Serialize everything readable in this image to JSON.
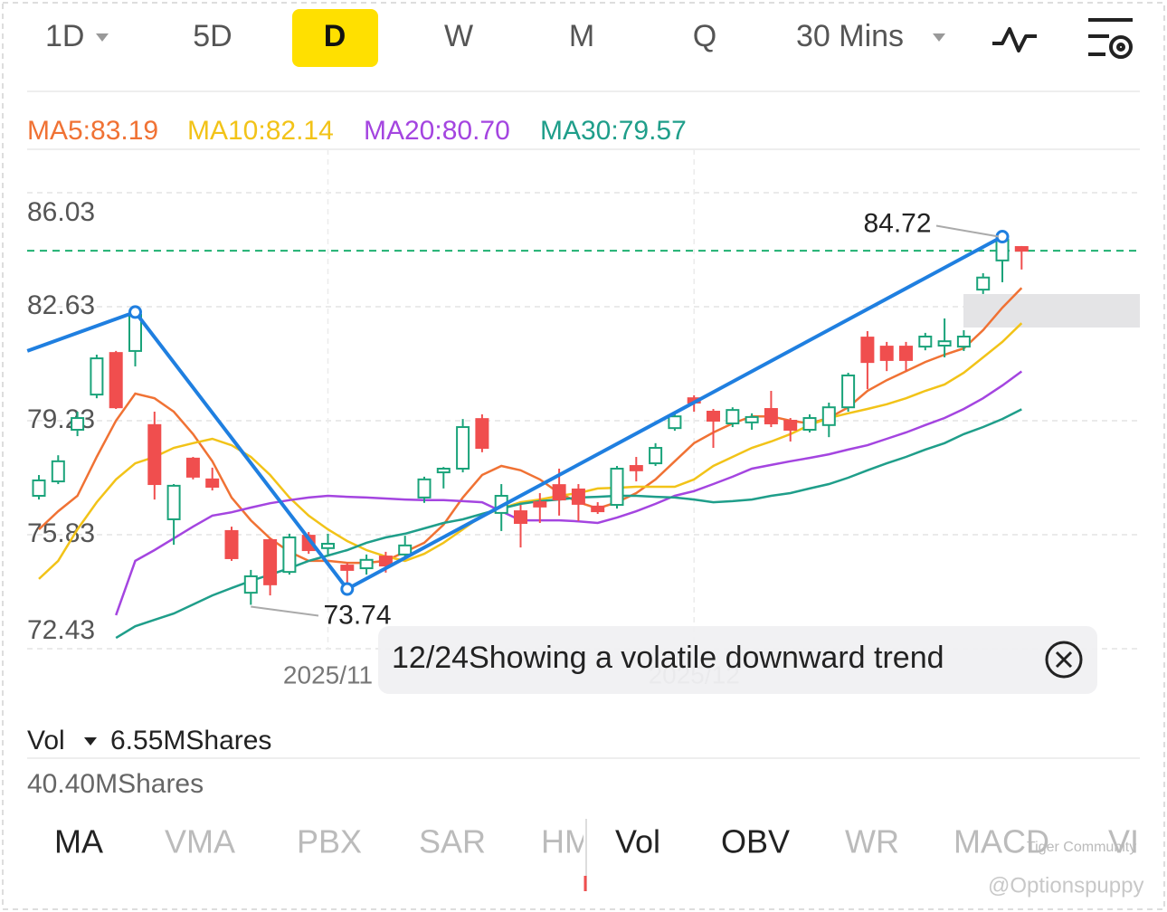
{
  "toolbar": {
    "tabs": [
      "1D",
      "5D",
      "D",
      "W",
      "M",
      "Q",
      "30 Mins"
    ],
    "selected": 2
  },
  "chart_data": {
    "type": "candlestick",
    "legend": [
      {
        "label": "MA5:83.19",
        "color": "#f07234"
      },
      {
        "label": "MA10:82.14",
        "color": "#f2c318"
      },
      {
        "label": "MA20:80.70",
        "color": "#a445e0"
      },
      {
        "label": "MA30:79.57",
        "color": "#1f9e8a"
      }
    ],
    "categories": [
      null,
      null,
      null,
      null,
      null,
      null,
      null,
      null,
      null,
      null,
      null,
      null,
      null,
      null,
      null,
      "2025/11",
      null,
      null,
      null,
      null,
      null,
      null,
      null,
      null,
      null,
      null,
      null,
      null,
      null,
      null,
      null,
      null,
      null,
      null,
      "2025/12",
      null,
      null,
      null,
      null,
      null,
      null,
      null,
      null,
      null,
      null,
      null,
      null,
      null,
      null,
      null,
      null,
      null
    ],
    "open": [
      76.99,
      77.42,
      78.96,
      80.01,
      81.25,
      81.31,
      79.1,
      76.29,
      78.1,
      77.48,
      75.94,
      74.1,
      75.67,
      74.72,
      75.8,
      75.43,
      74.91,
      74.83,
      75.18,
      75.24,
      76.94,
      77.69,
      77.8,
      79.28,
      76.48,
      76.53,
      76.8,
      77.31,
      77.18,
      76.67,
      76.72,
      77.88,
      77.96,
      79.01,
      79.9,
      79.5,
      79.15,
      79.18,
      79.58,
      79.23,
      78.96,
      79.1,
      79.63,
      81.71,
      81.44,
      81.44,
      81.44,
      81.47,
      81.44,
      83.14,
      84.01,
      84.41
    ],
    "high": [
      77.61,
      78.2,
      79.5,
      81.2,
      81.31,
      82.47,
      79.5,
      77.34,
      78.15,
      77.83,
      76.07,
      74.78,
      75.72,
      75.86,
      75.91,
      75.86,
      74.99,
      75.24,
      75.32,
      75.8,
      77.56,
      77.85,
      79.28,
      79.42,
      77.34,
      76.72,
      77.07,
      77.8,
      77.34,
      76.8,
      77.88,
      78.15,
      78.56,
      79.5,
      79.99,
      79.58,
      79.63,
      79.45,
      80.12,
      79.31,
      79.42,
      79.77,
      80.66,
      81.9,
      81.58,
      81.58,
      81.85,
      82.28,
      81.93,
      83.63,
      84.72,
      84.44
    ],
    "low": [
      76.88,
      77.34,
      78.77,
      79.9,
      79.58,
      80.85,
      76.88,
      75.53,
      77.48,
      77.15,
      75.05,
      73.74,
      74.02,
      74.64,
      75.26,
      75.24,
      74.21,
      74.64,
      74.7,
      75.1,
      76.78,
      77.21,
      77.69,
      78.29,
      75.94,
      75.45,
      76.18,
      76.4,
      76.24,
      76.45,
      76.61,
      77.42,
      77.88,
      78.93,
      79.5,
      78.42,
      79.04,
      78.96,
      79.04,
      78.61,
      78.88,
      78.74,
      79.5,
      80.17,
      80.71,
      80.71,
      81.33,
      81.12,
      81.31,
      83.01,
      83.36,
      83.74
    ],
    "close": [
      77.45,
      78.02,
      79.31,
      81.09,
      79.63,
      82.39,
      77.34,
      77.29,
      77.56,
      77.26,
      75.13,
      74.59,
      74.35,
      75.75,
      75.37,
      75.56,
      74.78,
      75.08,
      74.91,
      75.51,
      77.48,
      77.8,
      79.04,
      78.42,
      76.99,
      76.18,
      76.67,
      76.88,
      76.75,
      76.53,
      77.8,
      77.75,
      78.42,
      79.36,
      79.77,
      79.23,
      79.55,
      79.34,
      79.15,
      78.96,
      79.31,
      79.63,
      80.58,
      80.98,
      81.04,
      81.04,
      81.74,
      81.6,
      81.74,
      83.5,
      84.63,
      84.3
    ],
    "up_color": "#1aa37a",
    "down_color": "#f04e4e",
    "series": [
      {
        "name": "MA5",
        "color": "#f07234",
        "values": [
          75.99,
          76.53,
          76.99,
          78.15,
          79.23,
          80.04,
          79.9,
          79.5,
          78.83,
          78.02,
          76.94,
          76.26,
          75.72,
          75.32,
          75.05,
          75.05,
          74.99,
          74.99,
          75.05,
          75.32,
          75.59,
          76.13,
          76.94,
          77.61,
          77.88,
          77.75,
          77.48,
          77.07,
          76.8,
          76.61,
          76.8,
          77.07,
          77.48,
          78.02,
          78.56,
          78.88,
          79.15,
          79.36,
          79.36,
          79.23,
          79.15,
          79.31,
          79.63,
          80.12,
          80.44,
          80.71,
          80.98,
          81.2,
          81.39,
          81.93,
          82.6,
          83.19
        ]
      },
      {
        "name": "MA10",
        "color": "#f2c318",
        "values": [
          74.51,
          75.05,
          75.99,
          76.8,
          77.48,
          77.96,
          78.15,
          78.42,
          78.56,
          78.69,
          78.5,
          78.15,
          77.61,
          76.94,
          76.4,
          75.99,
          75.64,
          75.37,
          75.18,
          75.05,
          75.26,
          75.59,
          75.99,
          76.4,
          76.61,
          76.8,
          76.88,
          76.99,
          77.07,
          77.21,
          77.23,
          77.26,
          77.26,
          77.26,
          77.48,
          77.88,
          78.15,
          78.42,
          78.61,
          78.83,
          79.1,
          79.31,
          79.45,
          79.58,
          79.72,
          79.9,
          80.12,
          80.31,
          80.66,
          81.12,
          81.58,
          82.14
        ]
      },
      {
        "name": "MA20",
        "color": "#a445e0",
        "values": [
          null,
          null,
          null,
          null,
          73.43,
          75.05,
          75.37,
          75.72,
          76.07,
          76.4,
          76.5,
          76.64,
          76.77,
          76.86,
          76.94,
          76.99,
          76.96,
          76.94,
          76.91,
          76.88,
          76.86,
          76.86,
          76.83,
          76.8,
          76.53,
          76.26,
          76.26,
          76.26,
          76.23,
          76.18,
          76.34,
          76.53,
          76.75,
          76.99,
          77.13,
          77.34,
          77.56,
          77.8,
          77.91,
          78.02,
          78.12,
          78.23,
          78.37,
          78.5,
          78.69,
          78.88,
          79.1,
          79.31,
          79.58,
          79.9,
          80.28,
          80.7
        ]
      },
      {
        "name": "MA30",
        "color": "#1f9e8a",
        "values": [
          null,
          null,
          null,
          null,
          72.75,
          73.1,
          73.29,
          73.48,
          73.75,
          74.02,
          74.24,
          74.45,
          74.64,
          74.83,
          75.05,
          75.21,
          75.37,
          75.59,
          75.75,
          75.86,
          76.02,
          76.18,
          76.29,
          76.45,
          76.61,
          76.75,
          76.83,
          76.88,
          76.94,
          76.96,
          76.99,
          76.99,
          76.96,
          76.94,
          76.88,
          76.8,
          76.83,
          76.88,
          76.99,
          77.07,
          77.21,
          77.34,
          77.53,
          77.75,
          77.96,
          78.15,
          78.37,
          78.56,
          78.83,
          79.04,
          79.28,
          79.57
        ]
      }
    ],
    "trend_line": {
      "color": "#1f7fe0",
      "x": [
        -0.6,
        5,
        16,
        50
      ],
      "values": [
        81.31,
        82.47,
        74.21,
        84.72
      ]
    },
    "high_label": 84.72,
    "low_label": 73.74,
    "current_price": 84.3,
    "current_price_color": "#1fb071",
    "ylim": [
      72.43,
      86.03
    ],
    "yticks": [
      86.03,
      82.63,
      79.23,
      75.83,
      72.43
    ],
    "grid": true
  },
  "tooltip": {
    "text": "12/24Showing a volatile downward trend"
  },
  "volume": {
    "title": "Vol",
    "current": "6.55MShares",
    "max": "40.40MShares"
  },
  "indicator_tabs": {
    "main": [
      "MA",
      "VMA",
      "PBX",
      "SAR",
      "HM"
    ],
    "main_selected": 0,
    "sub": [
      "Vol",
      "OBV",
      "WR",
      "MACD",
      "VI"
    ],
    "sub_selected": [
      0,
      1
    ]
  },
  "watermark": [
    "Tiger Community",
    "@Optionspuppy"
  ]
}
